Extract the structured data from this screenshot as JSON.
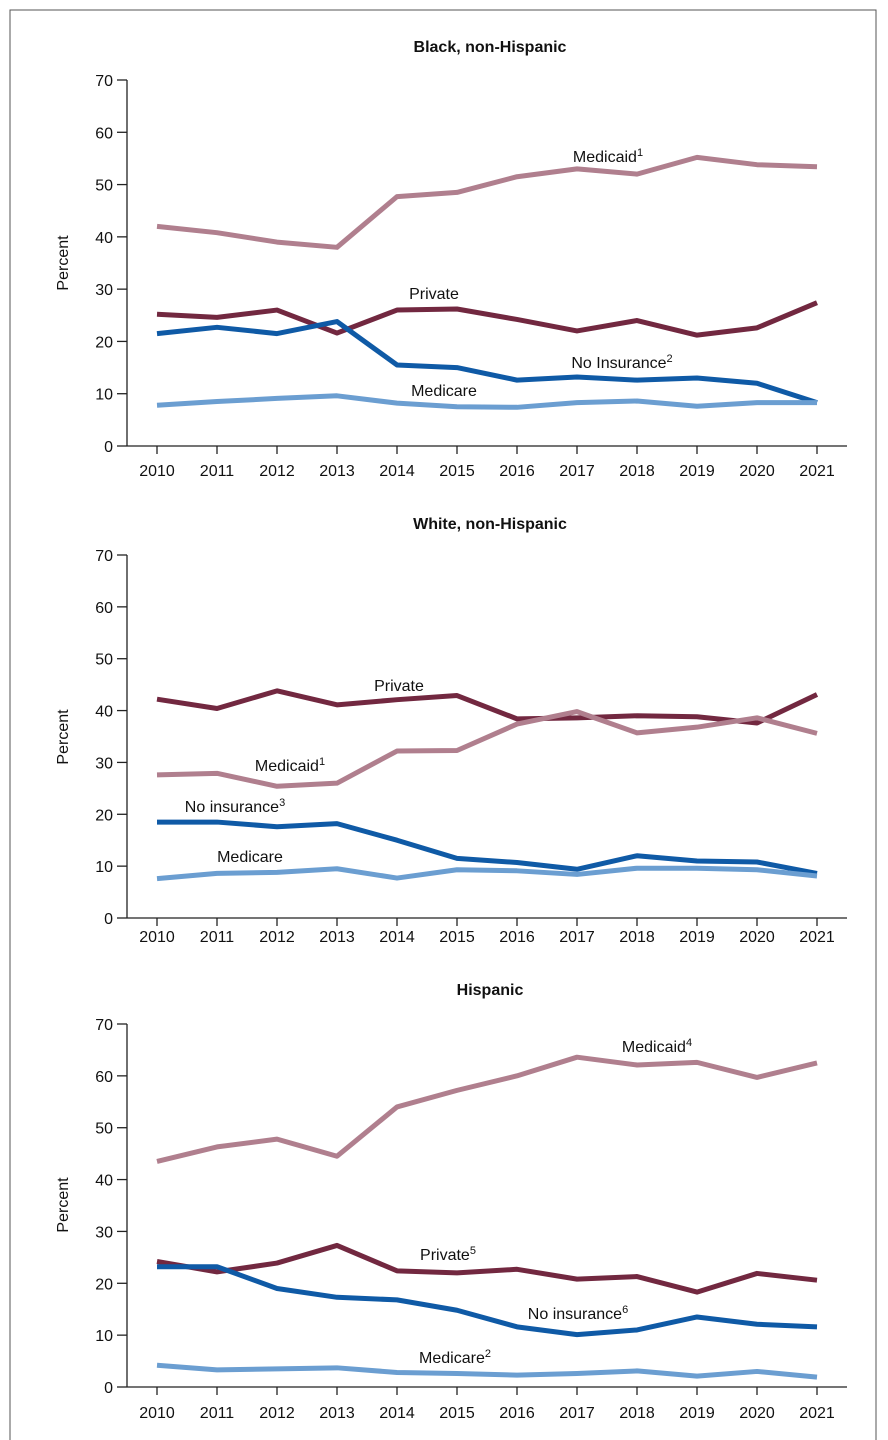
{
  "chart_data": [
    {
      "type": "line",
      "title": "Black, non-Hispanic",
      "ylabel": "Percent",
      "x": [
        2010,
        2011,
        2012,
        2013,
        2014,
        2015,
        2016,
        2017,
        2018,
        2019,
        2020,
        2021
      ],
      "xlim": [
        2009.5,
        2021.5
      ],
      "xticks": [
        2010,
        2011,
        2012,
        2013,
        2014,
        2015,
        2016,
        2017,
        2018,
        2019,
        2020,
        2021
      ],
      "ylim": [
        0,
        70
      ],
      "yticks": [
        0,
        10,
        20,
        30,
        40,
        50,
        60,
        70
      ],
      "series": [
        {
          "name": "Medicaid",
          "footnote": "1",
          "color": "#b07f8e",
          "values": [
            42,
            40.8,
            39,
            38,
            47.7,
            48.5,
            51.5,
            53,
            52,
            55.2,
            53.8,
            53.4
          ]
        },
        {
          "name": "Private",
          "color": "#722840",
          "values": [
            25.2,
            24.6,
            26,
            21.6,
            26,
            26.2,
            24.2,
            22,
            24,
            21.2,
            22.6,
            27.4
          ]
        },
        {
          "name": "No Insurance",
          "footnote": "2",
          "color": "#0f5aa6",
          "values": [
            21.5,
            22.7,
            21.5,
            23.8,
            15.5,
            15,
            12.6,
            13.2,
            12.6,
            13,
            12,
            8.3
          ]
        },
        {
          "name": "Medicare",
          "color": "#6b9ed1",
          "values": [
            7.8,
            8.5,
            9.1,
            9.6,
            8.2,
            7.5,
            7.4,
            8.3,
            8.6,
            7.6,
            8.3,
            8.3
          ]
        }
      ]
    },
    {
      "type": "line",
      "title": "White, non-Hispanic",
      "ylabel": "Percent",
      "x": [
        2010,
        2011,
        2012,
        2013,
        2014,
        2015,
        2016,
        2017,
        2018,
        2019,
        2020,
        2021
      ],
      "xlim": [
        2009.5,
        2021.5
      ],
      "xticks": [
        2010,
        2011,
        2012,
        2013,
        2014,
        2015,
        2016,
        2017,
        2018,
        2019,
        2020,
        2021
      ],
      "ylim": [
        0,
        70
      ],
      "yticks": [
        0,
        10,
        20,
        30,
        40,
        50,
        60,
        70
      ],
      "series": [
        {
          "name": "Private",
          "color": "#722840",
          "values": [
            42.2,
            40.4,
            43.8,
            41.1,
            42.1,
            42.9,
            38.4,
            38.6,
            39,
            38.8,
            37.6,
            43.1
          ]
        },
        {
          "name": "Medicaid",
          "footnote": "1",
          "color": "#b07f8e",
          "values": [
            27.6,
            27.9,
            25.4,
            26,
            32.2,
            32.3,
            37.4,
            39.8,
            35.7,
            36.8,
            38.6,
            35.6
          ]
        },
        {
          "name": "No insurance",
          "footnote": "3",
          "color": "#0f5aa6",
          "values": [
            18.5,
            18.5,
            17.6,
            18.2,
            15,
            11.5,
            10.7,
            9.4,
            12,
            11,
            10.8,
            8.6
          ]
        },
        {
          "name": "Medicare",
          "color": "#6b9ed1",
          "values": [
            7.6,
            8.6,
            8.8,
            9.5,
            7.7,
            9.3,
            9.1,
            8.4,
            9.6,
            9.6,
            9.3,
            8.1
          ]
        }
      ]
    },
    {
      "type": "line",
      "title": "Hispanic",
      "ylabel": "Percent",
      "x": [
        2010,
        2011,
        2012,
        2013,
        2014,
        2015,
        2016,
        2017,
        2018,
        2019,
        2020,
        2021
      ],
      "xlim": [
        2009.5,
        2021.5
      ],
      "xticks": [
        2010,
        2011,
        2012,
        2013,
        2014,
        2015,
        2016,
        2017,
        2018,
        2019,
        2020,
        2021
      ],
      "ylim": [
        0,
        70
      ],
      "yticks": [
        0,
        10,
        20,
        30,
        40,
        50,
        60,
        70
      ],
      "series": [
        {
          "name": "Medicaid",
          "footnote": "4",
          "color": "#b07f8e",
          "values": [
            43.5,
            46.3,
            47.8,
            44.5,
            54,
            57.2,
            60,
            63.6,
            62.1,
            62.6,
            59.7,
            62.5
          ]
        },
        {
          "name": "Private",
          "footnote": "5",
          "color": "#722840",
          "values": [
            24.2,
            22.2,
            23.9,
            27.3,
            22.4,
            22,
            22.7,
            20.8,
            21.3,
            18.3,
            21.9,
            20.6
          ]
        },
        {
          "name": "No insurance",
          "footnote": "6",
          "color": "#0f5aa6",
          "values": [
            23.2,
            23.2,
            19,
            17.3,
            16.8,
            14.8,
            11.6,
            10.1,
            11,
            13.5,
            12.1,
            11.6
          ]
        },
        {
          "name": "Medicare",
          "footnote": "2",
          "color": "#6b9ed1",
          "values": [
            4.2,
            3.3,
            3.5,
            3.7,
            2.8,
            2.6,
            2.3,
            2.6,
            3.1,
            2.1,
            3,
            1.9
          ]
        }
      ]
    }
  ]
}
